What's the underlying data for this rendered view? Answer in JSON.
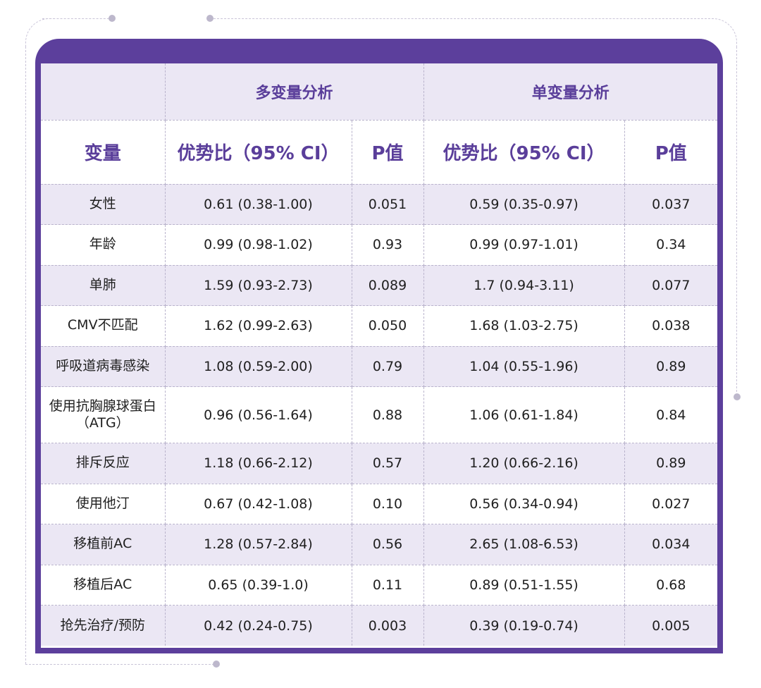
{
  "table": {
    "group_headers": [
      "",
      "多变量分析",
      "单变量分析"
    ],
    "column_headers": [
      "变量",
      "优势比（95% CI）",
      "P值",
      "优势比（95% CI）",
      "P值"
    ],
    "rows": [
      [
        "女性",
        "0.61 (0.38-1.00)",
        "0.051",
        "0.59 (0.35-0.97)",
        "0.037"
      ],
      [
        "年龄",
        "0.99 (0.98-1.02)",
        "0.93",
        "0.99 (0.97-1.01)",
        "0.34"
      ],
      [
        "单肺",
        "1.59 (0.93-2.73)",
        "0.089",
        "1.7 (0.94-3.11)",
        "0.077"
      ],
      [
        "CMV不匹配",
        "1.62 (0.99-2.63)",
        "0.050",
        "1.68 (1.03-2.75)",
        "0.038"
      ],
      [
        "呼吸道病毒感染",
        "1.08 (0.59-2.00)",
        "0.79",
        "1.04 (0.55-1.96)",
        "0.89"
      ],
      [
        "使用抗胸腺球蛋白（ATG）",
        "0.96 (0.56-1.64)",
        "0.88",
        "1.06 (0.61-1.84)",
        "0.84"
      ],
      [
        "排斥反应",
        "1.18 (0.66-2.12)",
        "0.57",
        "1.20 (0.66-2.16)",
        "0.89"
      ],
      [
        "使用他汀",
        "0.67 (0.42-1.08)",
        "0.10",
        "0.56 (0.34-0.94)",
        "0.027"
      ],
      [
        "移植前AC",
        "1.28 (0.57-2.84)",
        "0.56",
        "2.65 (1.08-6.53)",
        "0.034"
      ],
      [
        "移植后AC",
        "0.65 (0.39-1.0)",
        "0.11",
        "0.89 (0.51-1.55)",
        "0.68"
      ],
      [
        "抢先治疗/预防",
        "0.42 (0.24-0.75)",
        "0.003",
        "0.39 (0.19-0.74)",
        "0.005"
      ]
    ]
  },
  "colors": {
    "frame": "#5c3f9c",
    "header_text": "#5a3e9a",
    "stripe": "#ebe7f4"
  }
}
